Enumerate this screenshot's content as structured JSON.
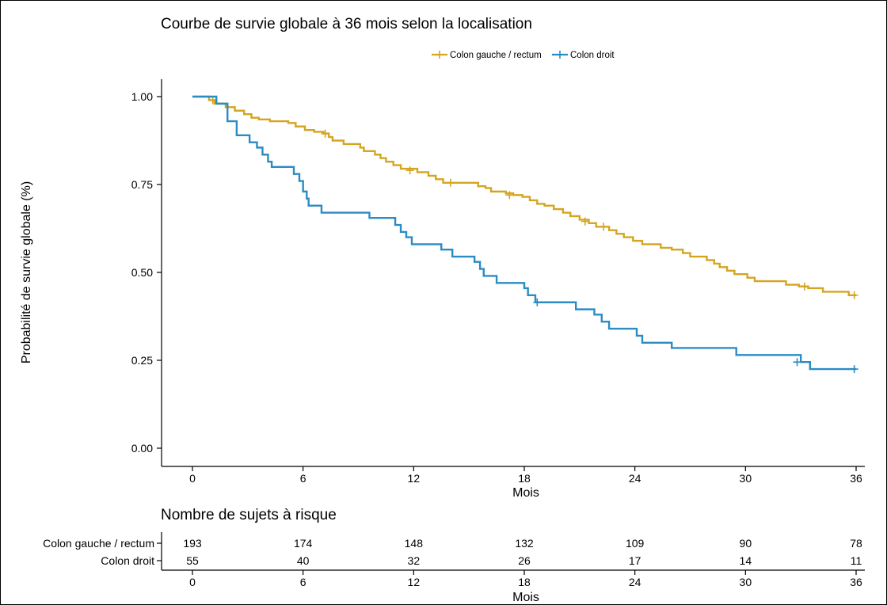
{
  "chart_data": {
    "type": "line",
    "title": "Courbe de survie globale à 36 mois selon la localisation",
    "xlabel": "Mois",
    "ylabel": "Probabilité de survie globale (%)",
    "xlim": [
      0,
      36
    ],
    "ylim": [
      0,
      1
    ],
    "x_ticks": [
      0,
      6,
      12,
      18,
      24,
      30,
      36
    ],
    "y_ticks": [
      "0.00",
      "0.25",
      "0.50",
      "0.75",
      "1.00"
    ],
    "grid": false,
    "legend_position": "top",
    "step": true,
    "series": [
      {
        "name": "Colon gauche / rectum",
        "color": "#D4A520",
        "points": [
          [
            0,
            1.0
          ],
          [
            0.9,
            0.99
          ],
          [
            1.2,
            0.98
          ],
          [
            1.8,
            0.97
          ],
          [
            2.3,
            0.96
          ],
          [
            2.8,
            0.95
          ],
          [
            3.2,
            0.94
          ],
          [
            3.6,
            0.935
          ],
          [
            4.2,
            0.93
          ],
          [
            5.2,
            0.925
          ],
          [
            5.6,
            0.915
          ],
          [
            6.1,
            0.905
          ],
          [
            6.6,
            0.9
          ],
          [
            7.1,
            0.895
          ],
          [
            7.4,
            0.885
          ],
          [
            7.6,
            0.875
          ],
          [
            8.2,
            0.865
          ],
          [
            9.1,
            0.855
          ],
          [
            9.3,
            0.845
          ],
          [
            9.9,
            0.835
          ],
          [
            10.2,
            0.825
          ],
          [
            10.5,
            0.815
          ],
          [
            10.9,
            0.805
          ],
          [
            11.3,
            0.795
          ],
          [
            12.2,
            0.785
          ],
          [
            12.8,
            0.775
          ],
          [
            13.2,
            0.765
          ],
          [
            13.6,
            0.755
          ],
          [
            15.5,
            0.745
          ],
          [
            15.9,
            0.74
          ],
          [
            16.2,
            0.73
          ],
          [
            17.0,
            0.725
          ],
          [
            17.4,
            0.72
          ],
          [
            17.9,
            0.715
          ],
          [
            18.3,
            0.705
          ],
          [
            18.7,
            0.695
          ],
          [
            19.1,
            0.69
          ],
          [
            19.6,
            0.68
          ],
          [
            20.1,
            0.67
          ],
          [
            20.5,
            0.66
          ],
          [
            21.0,
            0.65
          ],
          [
            21.5,
            0.64
          ],
          [
            21.9,
            0.63
          ],
          [
            22.6,
            0.62
          ],
          [
            23.0,
            0.61
          ],
          [
            23.4,
            0.6
          ],
          [
            23.9,
            0.59
          ],
          [
            24.4,
            0.58
          ],
          [
            25.4,
            0.57
          ],
          [
            26.0,
            0.565
          ],
          [
            26.6,
            0.555
          ],
          [
            27.0,
            0.545
          ],
          [
            27.9,
            0.535
          ],
          [
            28.3,
            0.525
          ],
          [
            28.6,
            0.515
          ],
          [
            29.0,
            0.505
          ],
          [
            29.4,
            0.495
          ],
          [
            30.1,
            0.485
          ],
          [
            30.5,
            0.475
          ],
          [
            32.2,
            0.465
          ],
          [
            32.9,
            0.46
          ],
          [
            33.4,
            0.455
          ],
          [
            34.2,
            0.445
          ],
          [
            35.6,
            0.435
          ],
          [
            36.0,
            0.435
          ]
        ],
        "censors": [
          [
            1.1,
            0.99
          ],
          [
            7.2,
            0.895
          ],
          [
            11.8,
            0.79
          ],
          [
            14.0,
            0.755
          ],
          [
            17.2,
            0.72
          ],
          [
            21.3,
            0.645
          ],
          [
            22.3,
            0.63
          ],
          [
            33.2,
            0.46
          ],
          [
            35.9,
            0.435
          ]
        ]
      },
      {
        "name": "Colon droit",
        "color": "#2B8CC4",
        "points": [
          [
            0,
            1.0
          ],
          [
            1.3,
            0.98
          ],
          [
            1.9,
            0.93
          ],
          [
            2.4,
            0.89
          ],
          [
            3.1,
            0.87
          ],
          [
            3.5,
            0.855
          ],
          [
            3.8,
            0.835
          ],
          [
            4.1,
            0.815
          ],
          [
            4.3,
            0.8
          ],
          [
            5.5,
            0.78
          ],
          [
            5.8,
            0.76
          ],
          [
            6.0,
            0.73
          ],
          [
            6.2,
            0.71
          ],
          [
            6.3,
            0.69
          ],
          [
            7.0,
            0.67
          ],
          [
            9.6,
            0.655
          ],
          [
            11.0,
            0.635
          ],
          [
            11.3,
            0.615
          ],
          [
            11.6,
            0.6
          ],
          [
            11.9,
            0.58
          ],
          [
            13.5,
            0.565
          ],
          [
            14.1,
            0.545
          ],
          [
            15.3,
            0.53
          ],
          [
            15.6,
            0.51
          ],
          [
            15.8,
            0.49
          ],
          [
            16.5,
            0.47
          ],
          [
            18.0,
            0.455
          ],
          [
            18.2,
            0.435
          ],
          [
            18.6,
            0.415
          ],
          [
            20.8,
            0.395
          ],
          [
            21.8,
            0.38
          ],
          [
            22.2,
            0.36
          ],
          [
            22.6,
            0.34
          ],
          [
            24.1,
            0.32
          ],
          [
            24.4,
            0.3
          ],
          [
            26.0,
            0.285
          ],
          [
            29.5,
            0.265
          ],
          [
            33.0,
            0.245
          ],
          [
            33.5,
            0.225
          ],
          [
            36.0,
            0.225
          ]
        ],
        "censors": [
          [
            18.7,
            0.415
          ],
          [
            32.8,
            0.245
          ],
          [
            35.9,
            0.225
          ]
        ]
      }
    ],
    "risk_table": {
      "title": "Nombre de sujets à risque",
      "xlabel": "Mois",
      "rows": [
        {
          "label": "Colon gauche / rectum",
          "values": [
            "193",
            "174",
            "148",
            "132",
            "109",
            "90",
            "78"
          ]
        },
        {
          "label": "Colon droit",
          "values": [
            "55",
            "40",
            "32",
            "26",
            "17",
            "14",
            "11"
          ]
        }
      ]
    }
  }
}
